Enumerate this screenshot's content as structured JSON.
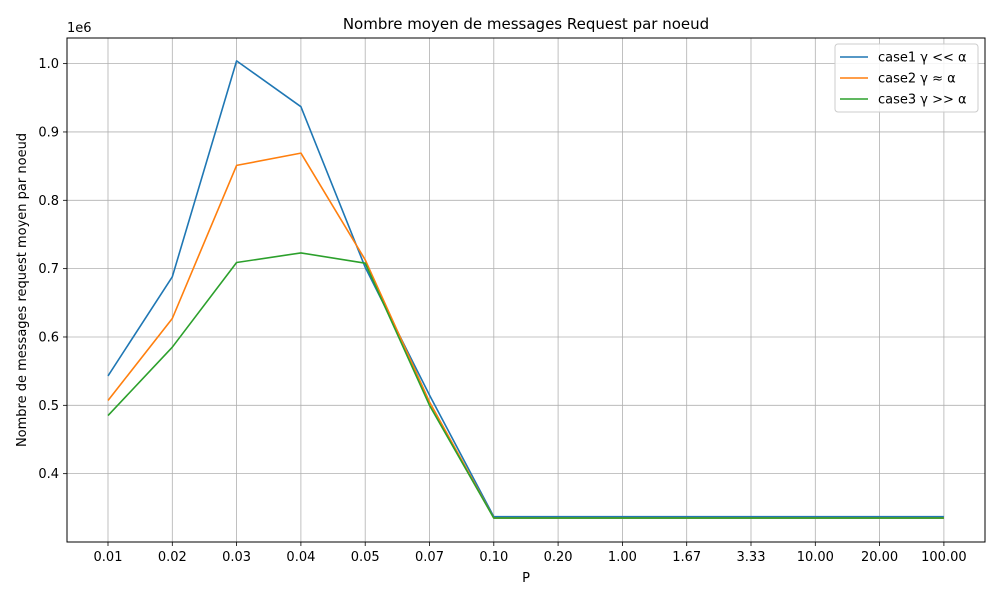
{
  "chart_data": {
    "type": "line",
    "title": "Nombre moyen de messages Request par noeud",
    "xlabel": "P",
    "ylabel": "Nombre de messages request moyen par noeud",
    "y_offset_label": "1e6",
    "categories": [
      "0.01",
      "0.02",
      "0.03",
      "0.04",
      "0.05",
      "0.07",
      "0.10",
      "0.20",
      "1.00",
      "1.67",
      "3.33",
      "10.00",
      "20.00",
      "100.00"
    ],
    "y_ticks": [
      "0.4",
      "0.5",
      "0.6",
      "0.7",
      "0.8",
      "0.9",
      "1.0"
    ],
    "y_tick_values": [
      0.4,
      0.5,
      0.6,
      0.7,
      0.8,
      0.9,
      1.0
    ],
    "ylim": [
      0.3,
      1.037
    ],
    "grid": true,
    "legend_position": "top-right",
    "series": [
      {
        "name": "case1 γ << α",
        "color": "#1f77b4",
        "values": [
          0.543,
          0.688,
          1.004,
          0.937,
          0.702,
          0.515,
          0.337,
          0.337,
          0.337,
          0.337,
          0.337,
          0.337,
          0.337,
          0.337
        ]
      },
      {
        "name": "case2 γ ≈ α",
        "color": "#ff7f0e",
        "values": [
          0.507,
          0.627,
          0.851,
          0.869,
          0.713,
          0.505,
          0.335,
          0.335,
          0.335,
          0.335,
          0.335,
          0.335,
          0.335,
          0.335
        ]
      },
      {
        "name": "case3 γ >> α",
        "color": "#2ca02c",
        "values": [
          0.485,
          0.585,
          0.709,
          0.723,
          0.708,
          0.5,
          0.335,
          0.335,
          0.335,
          0.335,
          0.335,
          0.335,
          0.335,
          0.335
        ]
      }
    ]
  }
}
